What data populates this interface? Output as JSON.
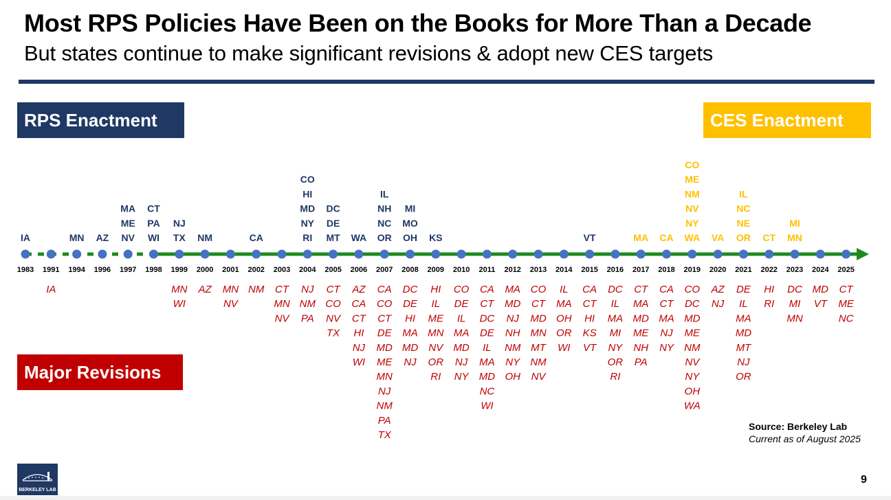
{
  "header": {
    "title": "Most RPS Policies Have Been on the Books for More Than a Decade",
    "subtitle": "But states continue to make significant revisions & adopt new CES targets"
  },
  "legend": {
    "rps": "RPS Enactment",
    "ces": "CES Enactment",
    "major": "Major Revisions"
  },
  "footer": {
    "source": "Source: Berkeley Lab",
    "current": "Current as of August 2025",
    "logo_text": "BERKELEY LAB",
    "page_number": "9"
  },
  "colors": {
    "rps": "#1f3864",
    "ces": "#ffc000",
    "major": "#c00000",
    "axis": "#1e8a1e",
    "dot": "#4472c4"
  },
  "chart_data": {
    "type": "table",
    "x": [
      "1983",
      "1991",
      "1994",
      "1996",
      "1997",
      "1998",
      "1999",
      "2000",
      "2001",
      "2002",
      "2003",
      "2004",
      "2005",
      "2006",
      "2007",
      "2008",
      "2009",
      "2010",
      "2011",
      "2012",
      "2013",
      "2014",
      "2015",
      "2016",
      "2017",
      "2018",
      "2019",
      "2020",
      "2021",
      "2022",
      "2023",
      "2024",
      "2025"
    ],
    "series": [
      {
        "name": "RPS Enactment",
        "values": [
          [
            "IA"
          ],
          [],
          [
            "MN"
          ],
          [
            "AZ"
          ],
          [
            "MA",
            "ME",
            "NV"
          ],
          [
            "CT",
            "PA",
            "WI"
          ],
          [
            "NJ",
            "TX"
          ],
          [
            "NM"
          ],
          [],
          [
            "CA"
          ],
          [],
          [
            "CO",
            "HI",
            "MD",
            "NY",
            "RI"
          ],
          [
            "DC",
            "DE",
            "MT"
          ],
          [
            "WA"
          ],
          [
            "IL",
            "NH",
            "NC",
            "OR"
          ],
          [
            "MI",
            "MO",
            "OH"
          ],
          [
            "KS"
          ],
          [],
          [],
          [],
          [],
          [],
          [
            "VT"
          ],
          [],
          [],
          [],
          [],
          [],
          [],
          [],
          [],
          [],
          []
        ]
      },
      {
        "name": "CES Enactment",
        "values": [
          [],
          [],
          [],
          [],
          [],
          [],
          [],
          [],
          [],
          [],
          [],
          [],
          [],
          [],
          [],
          [],
          [],
          [],
          [],
          [],
          [],
          [],
          [],
          [],
          [
            "MA"
          ],
          [
            "CA"
          ],
          [
            "CO",
            "ME",
            "NM",
            "NV",
            "NY",
            "WA"
          ],
          [
            "VA"
          ],
          [
            "IL",
            "NC",
            "NE",
            "OR"
          ],
          [
            "CT"
          ],
          [
            "MI",
            "MN"
          ],
          [],
          []
        ]
      },
      {
        "name": "Major Revisions",
        "values": [
          [],
          [
            "IA"
          ],
          [],
          [],
          [],
          [],
          [
            "MN",
            "WI"
          ],
          [
            "AZ"
          ],
          [
            "MN",
            "NV"
          ],
          [
            "NM"
          ],
          [
            "CT",
            "MN",
            "NV"
          ],
          [
            "NJ",
            "NM",
            "PA"
          ],
          [
            "CT",
            "CO",
            "NV",
            "TX"
          ],
          [
            "AZ",
            "CA",
            "CT",
            "HI",
            "NJ",
            "WI"
          ],
          [
            "CA",
            "CO",
            "CT",
            "DE",
            "MD",
            "ME",
            "MN",
            "NJ",
            "NM",
            "PA",
            "TX"
          ],
          [
            "DC",
            "DE",
            "HI",
            "MA",
            "MD",
            "NJ"
          ],
          [
            "HI",
            "IL",
            "ME",
            "MN",
            "NV",
            "OR",
            "RI"
          ],
          [
            "CO",
            "DE",
            "IL",
            "MA",
            "MD",
            "NJ",
            "NY"
          ],
          [
            "CA",
            "CT",
            "DC",
            "DE",
            "IL",
            "MA",
            "MD",
            "NC",
            "WI"
          ],
          [
            "MA",
            "MD",
            "NJ",
            "NH",
            "NM",
            "NY",
            "OH"
          ],
          [
            "CO",
            "CT",
            "MD",
            "MN",
            "MT",
            "NM",
            "NV"
          ],
          [
            "IL",
            "MA",
            "OH",
            "OR",
            "WI"
          ],
          [
            "CA",
            "CT",
            "HI",
            "KS",
            "VT"
          ],
          [
            "DC",
            "IL",
            "MA",
            "MI",
            "NY",
            "OR",
            "RI"
          ],
          [
            "CT",
            "MA",
            "MD",
            "ME",
            "NH",
            "PA"
          ],
          [
            "CA",
            "CT",
            "MA",
            "NJ",
            "NY"
          ],
          [
            "CO",
            "DC",
            "MD",
            "ME",
            "NM",
            "NV",
            "NY",
            "OH",
            "WA"
          ],
          [
            "AZ",
            "NJ"
          ],
          [
            "DE",
            "IL",
            "MA",
            "MD",
            "MT",
            "NJ",
            "OR"
          ],
          [
            "HI",
            "RI"
          ],
          [
            "DC",
            "MI",
            "MN"
          ],
          [
            "MD",
            "VT"
          ],
          [
            "CT",
            "ME",
            "NC"
          ]
        ]
      }
    ]
  }
}
